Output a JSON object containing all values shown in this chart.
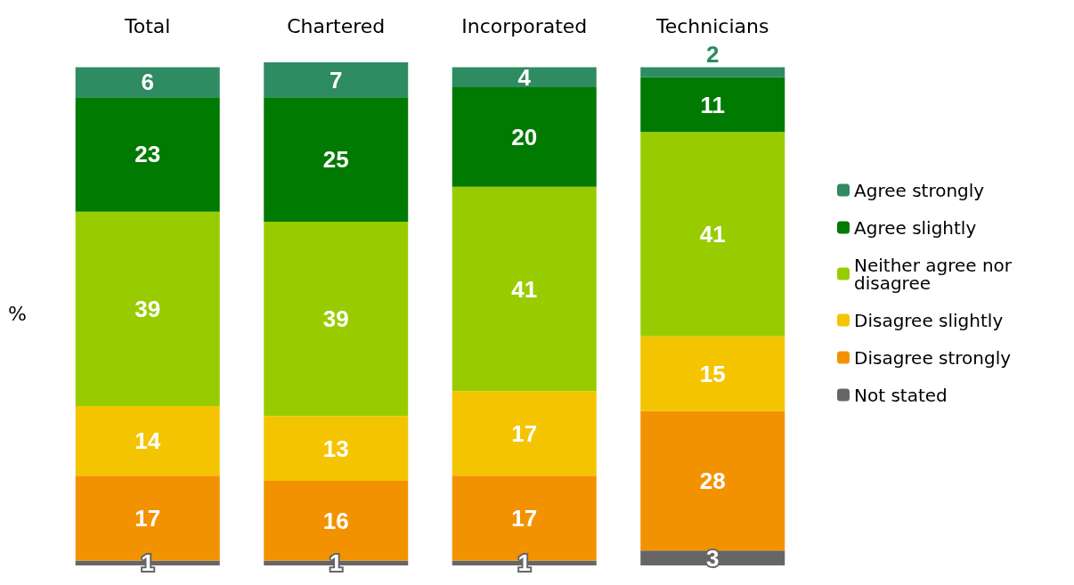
{
  "chart_data": {
    "type": "bar",
    "stacked": true,
    "ylabel": "%",
    "categories": [
      "Total",
      "Chartered",
      "Incorporated",
      "Technicians"
    ],
    "series": [
      {
        "name": "Not stated",
        "color": "#666666",
        "values": [
          1,
          1,
          1,
          3
        ]
      },
      {
        "name": "Disagree strongly",
        "color": "#f39200",
        "values": [
          17,
          16,
          17,
          28
        ]
      },
      {
        "name": "Disagree slightly",
        "color": "#f5c400",
        "values": [
          14,
          13,
          17,
          15
        ]
      },
      {
        "name": "Neither agree nor disagree",
        "color": "#99cc00",
        "values": [
          39,
          39,
          41,
          41
        ]
      },
      {
        "name": "Agree slightly",
        "color": "#007a00",
        "values": [
          23,
          25,
          20,
          11
        ]
      },
      {
        "name": "Agree strongly",
        "color": "#2e8b62",
        "values": [
          6,
          7,
          4,
          2
        ]
      }
    ],
    "data_labels": true,
    "legend": "right",
    "grid": false,
    "tick_labels": "x"
  }
}
